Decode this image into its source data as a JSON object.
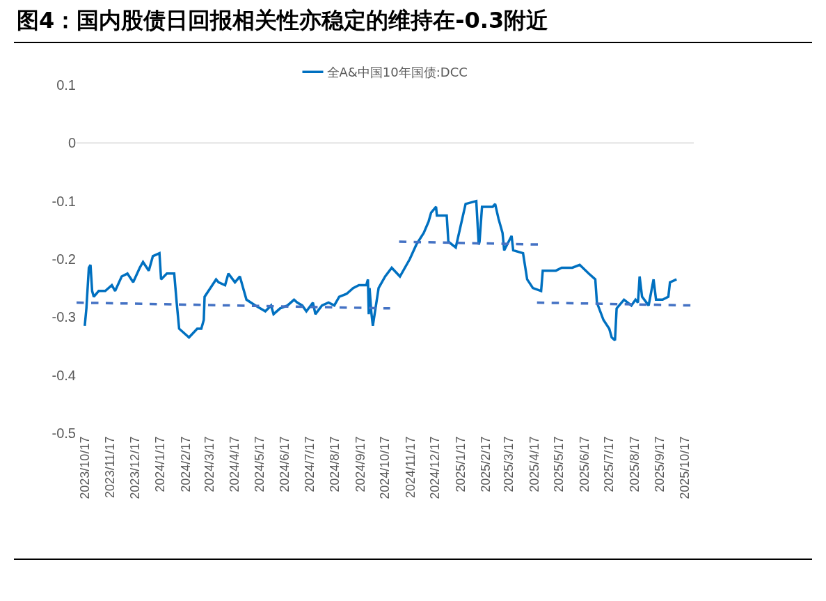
{
  "chart_data": {
    "type": "line",
    "title": "图4：国内股债日回报相关性亦稳定的维持在-0.3附近",
    "xlim": [
      "2023-10-07",
      "2025-10-28"
    ],
    "xticks": [
      {
        "value": "2023-10-17",
        "label": "2023/10/17"
      },
      {
        "value": "2023-11-17",
        "label": "2023/11/17"
      },
      {
        "value": "2023-12-17",
        "label": "2023/12/17"
      },
      {
        "value": "2024-01-17",
        "label": "2024/1/17"
      },
      {
        "value": "2024-02-17",
        "label": "2024/2/17"
      },
      {
        "value": "2024-03-17",
        "label": "2024/3/17"
      },
      {
        "value": "2024-04-17",
        "label": "2024/4/17"
      },
      {
        "value": "2024-05-17",
        "label": "2024/5/17"
      },
      {
        "value": "2024-06-17",
        "label": "2024/6/17"
      },
      {
        "value": "2024-07-17",
        "label": "2024/7/17"
      },
      {
        "value": "2024-08-17",
        "label": "2024/8/17"
      },
      {
        "value": "2024-09-17",
        "label": "2024/9/17"
      },
      {
        "value": "2024-10-17",
        "label": "2024/10/17"
      },
      {
        "value": "2024-11-17",
        "label": "2024/11/17"
      },
      {
        "value": "2024-12-17",
        "label": "2024/12/17"
      },
      {
        "value": "2025-01-17",
        "label": "2025/1/17"
      },
      {
        "value": "2025-02-17",
        "label": "2025/2/17"
      },
      {
        "value": "2025-03-17",
        "label": "2025/3/17"
      },
      {
        "value": "2025-04-17",
        "label": "2025/4/17"
      },
      {
        "value": "2025-05-17",
        "label": "2025/5/17"
      },
      {
        "value": "2025-06-17",
        "label": "2025/6/17"
      },
      {
        "value": "2025-07-17",
        "label": "2025/7/17"
      },
      {
        "value": "2025-08-17",
        "label": "2025/8/17"
      },
      {
        "value": "2025-09-17",
        "label": "2025/9/17"
      },
      {
        "value": "2025-10-17",
        "label": "2025/10/17"
      }
    ],
    "ylim": [
      -0.5,
      0.1
    ],
    "yticks": [
      -0.5,
      -0.4,
      -0.3,
      -0.2,
      -0.1,
      0,
      0.1
    ],
    "grid": false,
    "legend": "top",
    "marker": "none",
    "ref_lines": [
      {
        "axis": "y",
        "value": 0,
        "color": "#d9d9d9"
      }
    ],
    "series": [
      {
        "name": "全A&中国10年国债:DCC",
        "color": "#0070c0",
        "line_style": "solid",
        "x": [
          "2023-10-17",
          "2023-10-19",
          "2023-10-22",
          "2023-10-24",
          "2023-10-26",
          "2023-10-28",
          "2023-11-03",
          "2023-11-11",
          "2023-11-19",
          "2023-11-23",
          "2023-12-01",
          "2023-12-08",
          "2023-12-15",
          "2023-12-23",
          "2023-12-27",
          "2024-01-03",
          "2024-01-08",
          "2024-01-16",
          "2024-01-18",
          "2024-01-25",
          "2024-02-03",
          "2024-02-06",
          "2024-02-09",
          "2024-02-21",
          "2024-03-02",
          "2024-03-07",
          "2024-03-10",
          "2024-03-11",
          "2024-03-18",
          "2024-03-25",
          "2024-03-28",
          "2024-04-05",
          "2024-04-09",
          "2024-04-17",
          "2024-04-23",
          "2024-04-27",
          "2024-05-01",
          "2024-05-12",
          "2024-05-24",
          "2024-05-31",
          "2024-06-03",
          "2024-06-11",
          "2024-06-20",
          "2024-06-28",
          "2024-07-02",
          "2024-07-08",
          "2024-07-13",
          "2024-07-21",
          "2024-07-24",
          "2024-08-01",
          "2024-08-09",
          "2024-08-16",
          "2024-08-22",
          "2024-08-31",
          "2024-09-08",
          "2024-09-15",
          "2024-09-24",
          "2024-09-26",
          "2024-09-27",
          "2024-09-28",
          "2024-09-30",
          "2024-10-02",
          "2024-10-09",
          "2024-10-17",
          "2024-10-25",
          "2024-11-04",
          "2024-11-16",
          "2024-11-24",
          "2024-12-03",
          "2024-12-09",
          "2024-12-12",
          "2024-12-18",
          "2024-12-19",
          "2024-12-31",
          "2025-01-02",
          "2025-01-11",
          "2025-01-19",
          "2025-01-23",
          "2025-02-05",
          "2025-02-08",
          "2025-02-09",
          "2025-02-12",
          "2025-02-25",
          "2025-02-28",
          "2025-03-04",
          "2025-03-09",
          "2025-03-11",
          "2025-03-20",
          "2025-03-22",
          "2025-04-03",
          "2025-04-08",
          "2025-04-15",
          "2025-04-25",
          "2025-04-27",
          "2025-05-13",
          "2025-05-20",
          "2025-06-02",
          "2025-06-11",
          "2025-06-22",
          "2025-06-30",
          "2025-07-02",
          "2025-07-10",
          "2025-07-17",
          "2025-07-20",
          "2025-07-24",
          "2025-07-26",
          "2025-08-04",
          "2025-08-13",
          "2025-08-18",
          "2025-08-21",
          "2025-08-23",
          "2025-08-26",
          "2025-09-03",
          "2025-09-09",
          "2025-09-12",
          "2025-09-20",
          "2025-09-27",
          "2025-09-29",
          "2025-10-07"
        ],
        "values": [
          -0.315,
          -0.285,
          -0.215,
          -0.21,
          -0.255,
          -0.265,
          -0.255,
          -0.255,
          -0.245,
          -0.255,
          -0.23,
          -0.225,
          -0.24,
          -0.215,
          -0.205,
          -0.22,
          -0.195,
          -0.19,
          -0.235,
          -0.225,
          -0.225,
          -0.275,
          -0.32,
          -0.335,
          -0.32,
          -0.32,
          -0.305,
          -0.265,
          -0.25,
          -0.235,
          -0.24,
          -0.245,
          -0.225,
          -0.24,
          -0.23,
          -0.25,
          -0.27,
          -0.28,
          -0.29,
          -0.28,
          -0.295,
          -0.285,
          -0.28,
          -0.27,
          -0.275,
          -0.28,
          -0.29,
          -0.275,
          -0.295,
          -0.28,
          -0.275,
          -0.28,
          -0.265,
          -0.26,
          -0.25,
          -0.245,
          -0.245,
          -0.235,
          -0.295,
          -0.25,
          -0.29,
          -0.315,
          -0.25,
          -0.23,
          -0.215,
          -0.23,
          -0.2,
          -0.175,
          -0.155,
          -0.135,
          -0.12,
          -0.11,
          -0.125,
          -0.125,
          -0.17,
          -0.18,
          -0.13,
          -0.105,
          -0.1,
          -0.175,
          -0.17,
          -0.11,
          -0.11,
          -0.105,
          -0.13,
          -0.155,
          -0.185,
          -0.16,
          -0.185,
          -0.19,
          -0.235,
          -0.25,
          -0.255,
          -0.22,
          -0.22,
          -0.215,
          -0.215,
          -0.21,
          -0.225,
          -0.235,
          -0.275,
          -0.305,
          -0.32,
          -0.335,
          -0.34,
          -0.285,
          -0.27,
          -0.28,
          -0.27,
          -0.275,
          -0.23,
          -0.265,
          -0.28,
          -0.235,
          -0.27,
          -0.27,
          -0.265,
          -0.24,
          -0.235
        ]
      },
      {
        "type": "line",
        "color": "#4472c4",
        "line_style": "dashed",
        "x": [
          "2023-10-07",
          "2024-10-23"
        ],
        "values": [
          -0.275,
          -0.285
        ]
      },
      {
        "type": "line",
        "color": "#4472c4",
        "line_style": "dashed",
        "x": [
          "2024-11-03",
          "2025-04-23"
        ],
        "values": [
          -0.17,
          -0.175
        ]
      },
      {
        "type": "line",
        "color": "#4472c4",
        "line_style": "dashed",
        "x": [
          "2025-04-20",
          "2025-10-28"
        ],
        "values": [
          -0.275,
          -0.28
        ]
      }
    ]
  }
}
